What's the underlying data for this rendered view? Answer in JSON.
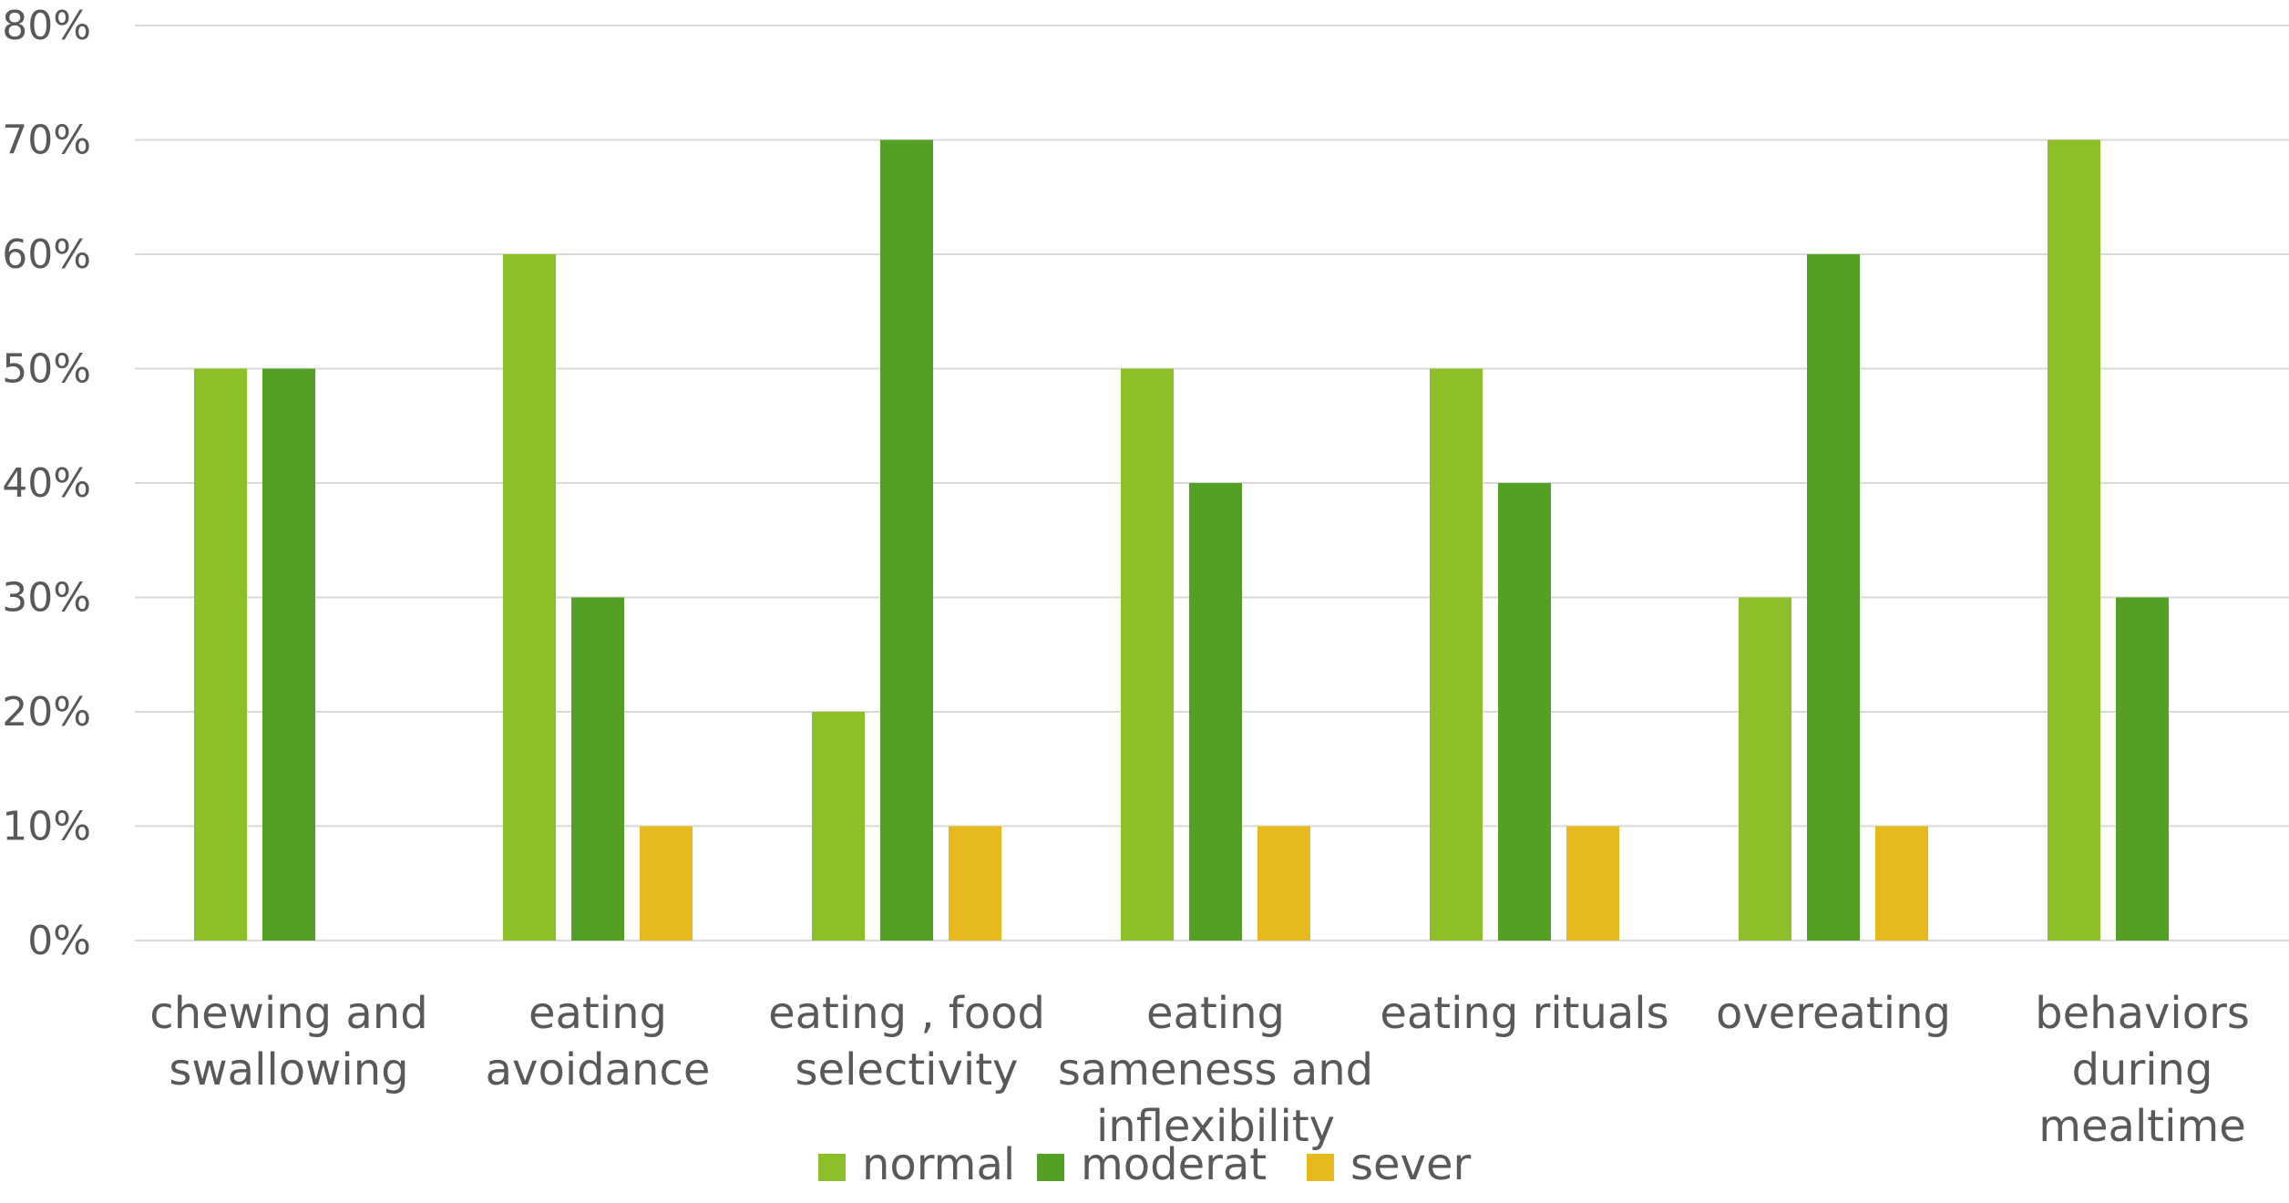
{
  "chart_data": {
    "type": "bar",
    "title": "",
    "xlabel": "",
    "ylabel": "",
    "ylim": [
      0,
      80
    ],
    "y_ticks": [
      "0%",
      "10%",
      "20%",
      "30%",
      "40%",
      "50%",
      "60%",
      "70%",
      "80%"
    ],
    "y_unit": "%",
    "grid": true,
    "legend_position": "bottom",
    "categories": [
      [
        "chewing and",
        "swallowing"
      ],
      [
        "eating",
        "avoidance"
      ],
      [
        "eating , food",
        "selectivity"
      ],
      [
        "eating",
        "sameness and",
        "inflexibility"
      ],
      [
        "eating rituals"
      ],
      [
        "overeating"
      ],
      [
        "behaviors",
        "during",
        "mealtime"
      ]
    ],
    "series": [
      {
        "name": "normal",
        "color": "#8DBF28",
        "values": [
          50,
          60,
          20,
          50,
          50,
          30,
          70
        ]
      },
      {
        "name": "moderat",
        "color": "#53A025",
        "values": [
          50,
          30,
          70,
          40,
          40,
          60,
          30
        ]
      },
      {
        "name": "sever",
        "color": "#E6BA1F",
        "values": [
          0,
          10,
          10,
          10,
          10,
          10,
          0
        ]
      }
    ]
  }
}
